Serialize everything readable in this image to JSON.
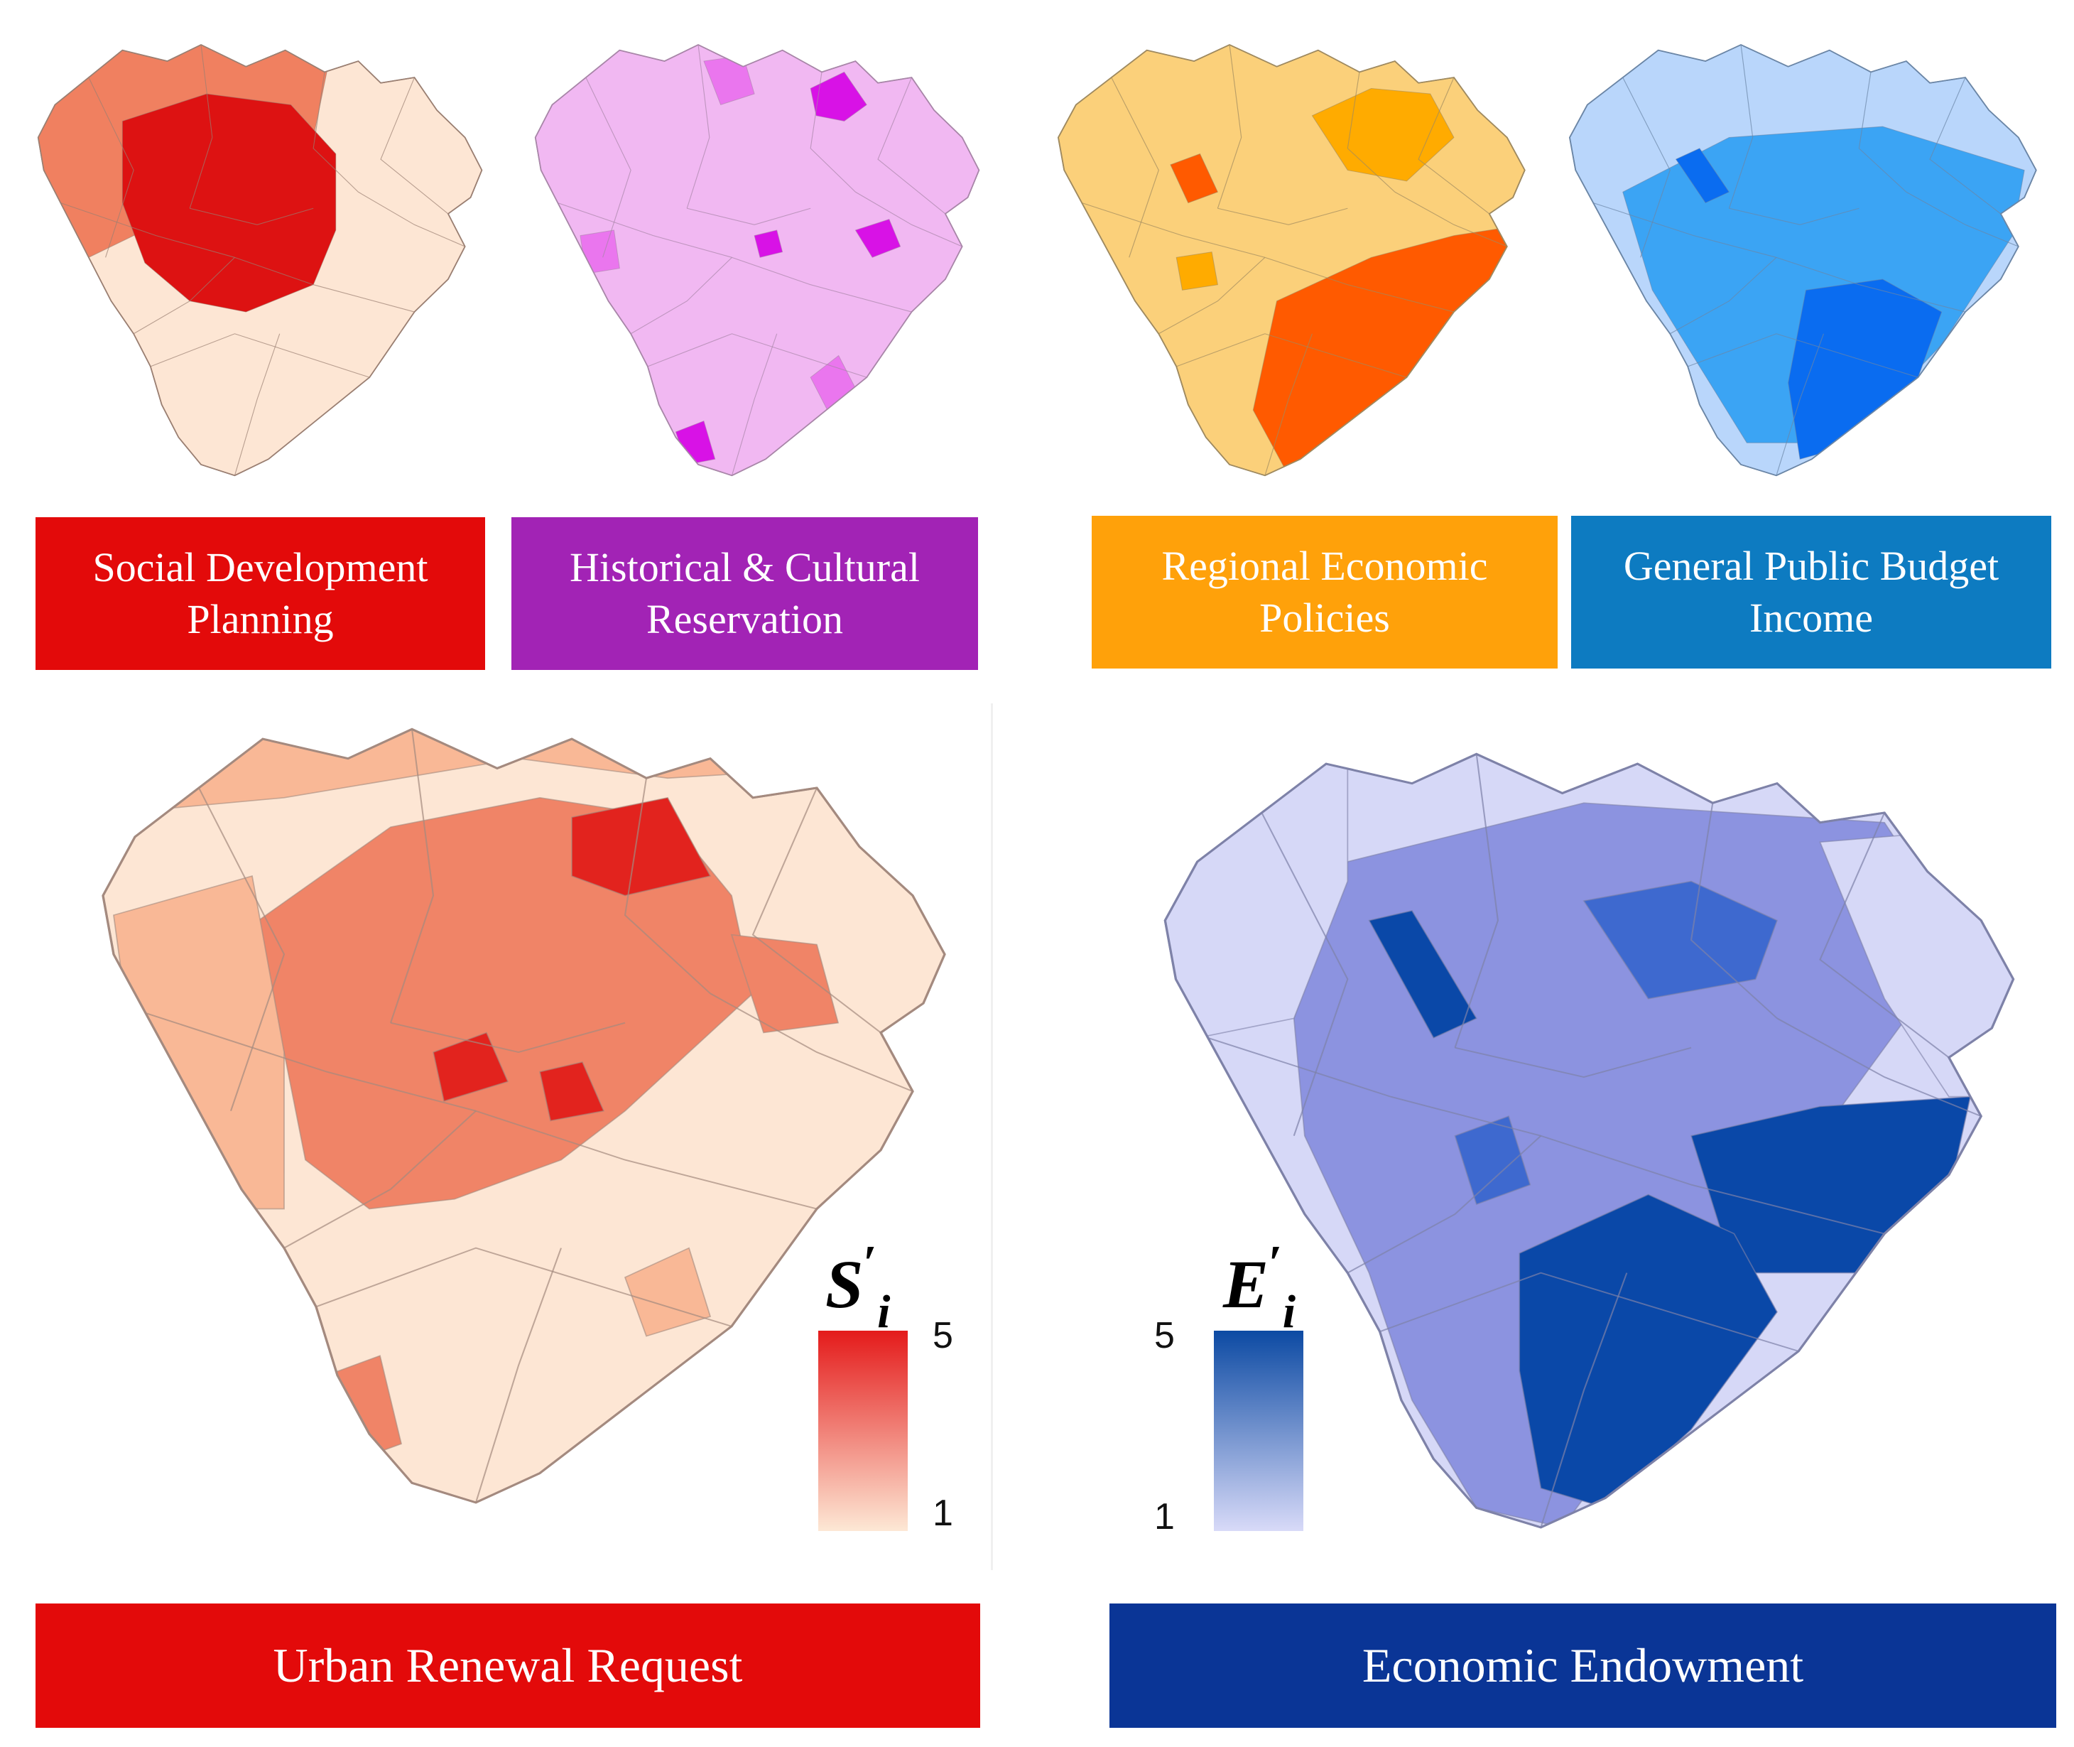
{
  "top_panels": [
    {
      "label": "Social Development Planning",
      "box_color": "#e30a0a",
      "colors": {
        "base": "#fde6d4",
        "mid": "#f08060",
        "high": "#dd1212",
        "border": "#9a7f72"
      }
    },
    {
      "label": "Historical & Cultural Reservation",
      "box_color": "#a223b5",
      "colors": {
        "base": "#f1b8f2",
        "mid": "#ea76ee",
        "high": "#d812e6",
        "border": "#a886a8"
      }
    },
    {
      "label": "Regional Economic Policies",
      "box_color": "#ffa10a",
      "colors": {
        "base": "#fbd07a",
        "mid": "#ffab00",
        "high": "#ff5a00",
        "border": "#9f8a60"
      }
    },
    {
      "label": "General Public Budget Income",
      "box_color": "#0d7bc1",
      "colors": {
        "base": "#b9d6fb",
        "mid": "#3ba4f4",
        "high": "#0a6cf0",
        "border": "#6b86a6"
      }
    }
  ],
  "bottom_panels": [
    {
      "label": "Urban Renewal Request",
      "box_color": "#e30a0a",
      "legend": {
        "symbol": "S",
        "prime": "′",
        "subscript": "i",
        "max": "5",
        "min": "1",
        "gradient": [
          "#e41b1b",
          "#fde8d5"
        ]
      },
      "colors": {
        "base": "#fde6d4",
        "light": "#f9b896",
        "mid": "#f08467",
        "high": "#e2231e",
        "border": "#a48a7f"
      }
    },
    {
      "label": "Economic Endowment",
      "box_color": "#0a3596",
      "legend": {
        "symbol": "E",
        "prime": "′",
        "subscript": "i",
        "max": "5",
        "min": "1",
        "gradient": [
          "#0c4aa3",
          "#d8daf8"
        ]
      },
      "colors": {
        "base": "#d6d8f7",
        "light": "#a9aced",
        "mid": "#8c93e0",
        "dark": "#3e69cf",
        "high": "#0a48a8",
        "border": "#7e82a8"
      }
    }
  ]
}
